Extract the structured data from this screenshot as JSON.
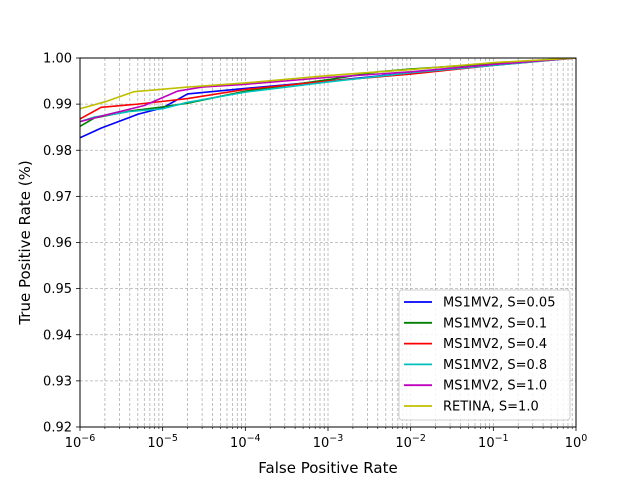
{
  "chart_data": {
    "type": "line",
    "title": "",
    "xlabel": "False Positive Rate",
    "ylabel": "True Positive Rate (%)",
    "xscale": "log",
    "xlim": [
      1e-06,
      1
    ],
    "ylim": [
      0.92,
      1.0
    ],
    "grid": true,
    "legend_position": "lower-right",
    "x_ticks": [
      {
        "value": 1e-06,
        "base": "10",
        "exp": "−6"
      },
      {
        "value": 1e-05,
        "base": "10",
        "exp": "−5"
      },
      {
        "value": 0.0001,
        "base": "10",
        "exp": "−4"
      },
      {
        "value": 0.001,
        "base": "10",
        "exp": "−3"
      },
      {
        "value": 0.01,
        "base": "10",
        "exp": "−2"
      },
      {
        "value": 0.1,
        "base": "10",
        "exp": "−1"
      },
      {
        "value": 1,
        "base": "10",
        "exp": "0"
      }
    ],
    "y_ticks": [
      {
        "value": 0.92,
        "label": "0.92"
      },
      {
        "value": 0.93,
        "label": "0.93"
      },
      {
        "value": 0.94,
        "label": "0.94"
      },
      {
        "value": 0.95,
        "label": "0.95"
      },
      {
        "value": 0.96,
        "label": "0.96"
      },
      {
        "value": 0.97,
        "label": "0.97"
      },
      {
        "value": 0.98,
        "label": "0.98"
      },
      {
        "value": 0.99,
        "label": "0.99"
      },
      {
        "value": 1.0,
        "label": "1.00"
      }
    ],
    "series": [
      {
        "name": "MS1MV2, S=0.05",
        "color": "#0000ff",
        "points": [
          [
            1e-06,
            0.9827
          ],
          [
            1.8e-06,
            0.9848
          ],
          [
            5e-06,
            0.9878
          ],
          [
            1e-05,
            0.9892
          ],
          [
            2e-05,
            0.9922
          ],
          [
            0.0001,
            0.9934
          ],
          [
            0.001,
            0.995
          ],
          [
            0.01,
            0.9968
          ],
          [
            0.1,
            0.9984
          ],
          [
            0.5,
            0.9996
          ],
          [
            1,
            1.0
          ]
        ]
      },
      {
        "name": "MS1MV2, S=0.1",
        "color": "#008000",
        "points": [
          [
            1e-06,
            0.9852
          ],
          [
            1.5e-06,
            0.987
          ],
          [
            4e-06,
            0.9885
          ],
          [
            1e-05,
            0.9894
          ],
          [
            2e-05,
            0.9902
          ],
          [
            0.0001,
            0.9928
          ],
          [
            0.001,
            0.9953
          ],
          [
            0.004,
            0.997
          ],
          [
            0.01,
            0.9976
          ],
          [
            0.1,
            0.9988
          ],
          [
            1,
            1.0
          ]
        ]
      },
      {
        "name": "MS1MV2, S=0.4",
        "color": "#ff0000",
        "points": [
          [
            1e-06,
            0.9868
          ],
          [
            1.8e-06,
            0.9893
          ],
          [
            5e-06,
            0.99
          ],
          [
            1e-05,
            0.9906
          ],
          [
            2e-05,
            0.9912
          ],
          [
            0.0001,
            0.9932
          ],
          [
            0.001,
            0.995
          ],
          [
            0.01,
            0.9965
          ],
          [
            0.1,
            0.9984
          ],
          [
            1,
            1.0
          ]
        ]
      },
      {
        "name": "MS1MV2, S=0.8",
        "color": "#00bfbf",
        "points": [
          [
            1e-06,
            0.9862
          ],
          [
            1.5e-06,
            0.9872
          ],
          [
            4e-06,
            0.9884
          ],
          [
            1e-05,
            0.989
          ],
          [
            2e-05,
            0.9904
          ],
          [
            0.0001,
            0.9926
          ],
          [
            0.001,
            0.9948
          ],
          [
            0.01,
            0.9968
          ],
          [
            0.1,
            0.9984
          ],
          [
            1,
            1.0
          ]
        ]
      },
      {
        "name": "MS1MV2, S=1.0",
        "color": "#bf00bf",
        "points": [
          [
            1e-06,
            0.9862
          ],
          [
            2e-06,
            0.9876
          ],
          [
            6e-06,
            0.9897
          ],
          [
            1.5e-05,
            0.9928
          ],
          [
            3e-05,
            0.9937
          ],
          [
            0.0001,
            0.9943
          ],
          [
            0.001,
            0.9958
          ],
          [
            0.01,
            0.997
          ],
          [
            0.1,
            0.9986
          ],
          [
            1,
            1.0
          ]
        ]
      },
      {
        "name": "RETINA, S=1.0",
        "color": "#bfbf00",
        "points": [
          [
            1e-06,
            0.989
          ],
          [
            2e-06,
            0.9905
          ],
          [
            4.5e-06,
            0.9927
          ],
          [
            2e-05,
            0.9937
          ],
          [
            0.0001,
            0.9946
          ],
          [
            0.001,
            0.9962
          ],
          [
            0.01,
            0.9975
          ],
          [
            0.1,
            0.999
          ],
          [
            1,
            1.0
          ]
        ]
      }
    ]
  }
}
